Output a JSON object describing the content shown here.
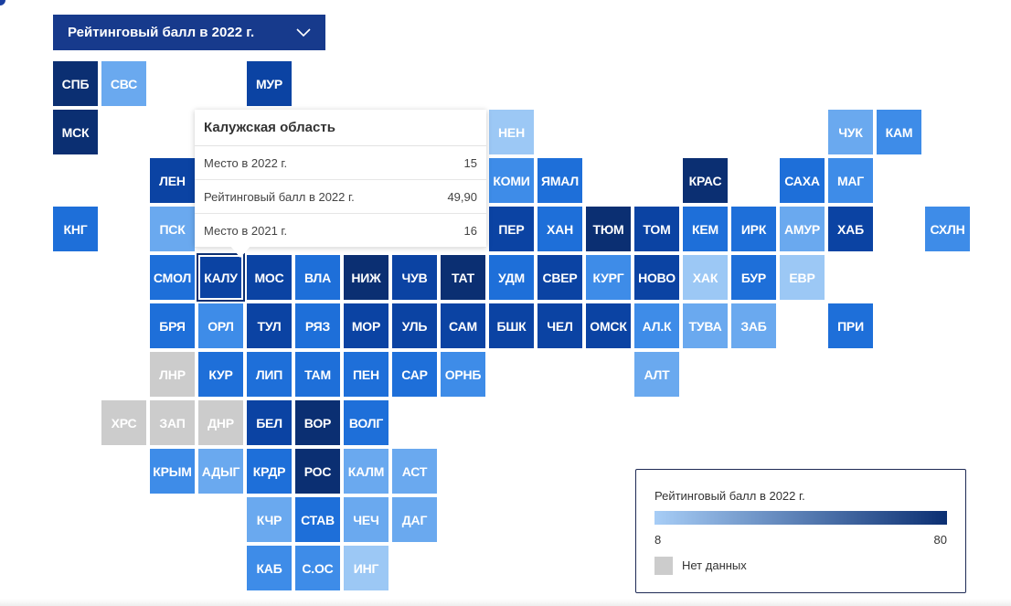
{
  "selector": {
    "label": "Рейтинговый балл в 2022 г."
  },
  "colors": {
    "c1": "#0b2f72",
    "c2": "#0b43a3",
    "c3": "#1e6fd9",
    "c4": "#3e8ce8",
    "c5": "#6aa9ef",
    "c6": "#9cc8f5",
    "nodata": "#cccccc",
    "legend_start": "#a7cdf6",
    "legend_end": "#0b2f72"
  },
  "tooltip": {
    "title": "Калужская область",
    "rows": [
      {
        "label": "Место в 2022 г.",
        "value": "15"
      },
      {
        "label": "Рейтинговый балл в 2022 г.",
        "value": "49,90"
      },
      {
        "label": "Место в 2021 г.",
        "value": "16"
      }
    ]
  },
  "legend": {
    "title": "Рейтинговый балл в 2022 г.",
    "min": "8",
    "max": "80",
    "nodata_label": "Нет данных"
  },
  "regions": [
    {
      "code": "СПБ",
      "col": 0,
      "row": 0,
      "shade": "c1"
    },
    {
      "code": "СВС",
      "col": 1,
      "row": 0,
      "shade": "c5"
    },
    {
      "code": "МУР",
      "col": 4,
      "row": 0,
      "shade": "c2"
    },
    {
      "code": "МСК",
      "col": 0,
      "row": 1,
      "shade": "c1"
    },
    {
      "code": "НЕН",
      "col": 9,
      "row": 1,
      "shade": "c6"
    },
    {
      "code": "ЧУК",
      "col": 16,
      "row": 1,
      "shade": "c5"
    },
    {
      "code": "КАМ",
      "col": 17,
      "row": 1,
      "shade": "c4"
    },
    {
      "code": "ЛЕН",
      "col": 2,
      "row": 2,
      "shade": "c2"
    },
    {
      "code": "КОМИ",
      "col": 9,
      "row": 2,
      "shade": "c4"
    },
    {
      "code": "ЯМАЛ",
      "col": 10,
      "row": 2,
      "shade": "c3"
    },
    {
      "code": "КРАС",
      "col": 13,
      "row": 2,
      "shade": "c1"
    },
    {
      "code": "САХА",
      "col": 15,
      "row": 2,
      "shade": "c3"
    },
    {
      "code": "МАГ",
      "col": 16,
      "row": 2,
      "shade": "c4"
    },
    {
      "code": "КНГ",
      "col": 0,
      "row": 3,
      "shade": "c3"
    },
    {
      "code": "ПСК",
      "col": 2,
      "row": 3,
      "shade": "c5"
    },
    {
      "code": "ПЕР",
      "col": 9,
      "row": 3,
      "shade": "c2"
    },
    {
      "code": "ХАН",
      "col": 10,
      "row": 3,
      "shade": "c3"
    },
    {
      "code": "ТЮМ",
      "col": 11,
      "row": 3,
      "shade": "c1"
    },
    {
      "code": "ТОМ",
      "col": 12,
      "row": 3,
      "shade": "c2"
    },
    {
      "code": "КЕМ",
      "col": 13,
      "row": 3,
      "shade": "c3"
    },
    {
      "code": "ИРК",
      "col": 14,
      "row": 3,
      "shade": "c3"
    },
    {
      "code": "АМУР",
      "col": 15,
      "row": 3,
      "shade": "c5"
    },
    {
      "code": "ХАБ",
      "col": 16,
      "row": 3,
      "shade": "c2"
    },
    {
      "code": "СХЛН",
      "col": 18,
      "row": 3,
      "shade": "c4"
    },
    {
      "code": "СМОЛ",
      "col": 2,
      "row": 4,
      "shade": "c3"
    },
    {
      "code": "КАЛУ",
      "col": 3,
      "row": 4,
      "shade": "c2",
      "selected": true
    },
    {
      "code": "МОС",
      "col": 4,
      "row": 4,
      "shade": "c2"
    },
    {
      "code": "ВЛА",
      "col": 5,
      "row": 4,
      "shade": "c3"
    },
    {
      "code": "НИЖ",
      "col": 6,
      "row": 4,
      "shade": "c1"
    },
    {
      "code": "ЧУВ",
      "col": 7,
      "row": 4,
      "shade": "c2"
    },
    {
      "code": "ТАТ",
      "col": 8,
      "row": 4,
      "shade": "c1"
    },
    {
      "code": "УДМ",
      "col": 9,
      "row": 4,
      "shade": "c3"
    },
    {
      "code": "СВЕР",
      "col": 10,
      "row": 4,
      "shade": "c2"
    },
    {
      "code": "КУРГ",
      "col": 11,
      "row": 4,
      "shade": "c4"
    },
    {
      "code": "НОВО",
      "col": 12,
      "row": 4,
      "shade": "c2"
    },
    {
      "code": "ХАК",
      "col": 13,
      "row": 4,
      "shade": "c6"
    },
    {
      "code": "БУР",
      "col": 14,
      "row": 4,
      "shade": "c3"
    },
    {
      "code": "ЕВР",
      "col": 15,
      "row": 4,
      "shade": "c6"
    },
    {
      "code": "БРЯ",
      "col": 2,
      "row": 5,
      "shade": "c3"
    },
    {
      "code": "ОРЛ",
      "col": 3,
      "row": 5,
      "shade": "c4"
    },
    {
      "code": "ТУЛ",
      "col": 4,
      "row": 5,
      "shade": "c2"
    },
    {
      "code": "РЯЗ",
      "col": 5,
      "row": 5,
      "shade": "c3"
    },
    {
      "code": "МОР",
      "col": 6,
      "row": 5,
      "shade": "c2"
    },
    {
      "code": "УЛЬ",
      "col": 7,
      "row": 5,
      "shade": "c2"
    },
    {
      "code": "САМ",
      "col": 8,
      "row": 5,
      "shade": "c2"
    },
    {
      "code": "БШК",
      "col": 9,
      "row": 5,
      "shade": "c2"
    },
    {
      "code": "ЧЕЛ",
      "col": 10,
      "row": 5,
      "shade": "c2"
    },
    {
      "code": "ОМСК",
      "col": 11,
      "row": 5,
      "shade": "c2"
    },
    {
      "code": "АЛ.К",
      "col": 12,
      "row": 5,
      "shade": "c4"
    },
    {
      "code": "ТУВА",
      "col": 13,
      "row": 5,
      "shade": "c5"
    },
    {
      "code": "ЗАБ",
      "col": 14,
      "row": 5,
      "shade": "c5"
    },
    {
      "code": "ПРИ",
      "col": 16,
      "row": 5,
      "shade": "c3"
    },
    {
      "code": "ЛНР",
      "col": 2,
      "row": 6,
      "shade": "nodata"
    },
    {
      "code": "КУР",
      "col": 3,
      "row": 6,
      "shade": "c3"
    },
    {
      "code": "ЛИП",
      "col": 4,
      "row": 6,
      "shade": "c3"
    },
    {
      "code": "ТАМ",
      "col": 5,
      "row": 6,
      "shade": "c3"
    },
    {
      "code": "ПЕН",
      "col": 6,
      "row": 6,
      "shade": "c3"
    },
    {
      "code": "САР",
      "col": 7,
      "row": 6,
      "shade": "c3"
    },
    {
      "code": "ОРНБ",
      "col": 8,
      "row": 6,
      "shade": "c4"
    },
    {
      "code": "АЛТ",
      "col": 12,
      "row": 6,
      "shade": "c5"
    },
    {
      "code": "ХРС",
      "col": 1,
      "row": 7,
      "shade": "nodata"
    },
    {
      "code": "ЗАП",
      "col": 2,
      "row": 7,
      "shade": "nodata"
    },
    {
      "code": "ДНР",
      "col": 3,
      "row": 7,
      "shade": "nodata"
    },
    {
      "code": "БЕЛ",
      "col": 4,
      "row": 7,
      "shade": "c2"
    },
    {
      "code": "ВОР",
      "col": 5,
      "row": 7,
      "shade": "c1"
    },
    {
      "code": "ВОЛГ",
      "col": 6,
      "row": 7,
      "shade": "c3"
    },
    {
      "code": "КРЫМ",
      "col": 2,
      "row": 8,
      "shade": "c4"
    },
    {
      "code": "АДЫГ",
      "col": 3,
      "row": 8,
      "shade": "c5"
    },
    {
      "code": "КРДР",
      "col": 4,
      "row": 8,
      "shade": "c3"
    },
    {
      "code": "РОС",
      "col": 5,
      "row": 8,
      "shade": "c1"
    },
    {
      "code": "КАЛМ",
      "col": 6,
      "row": 8,
      "shade": "c5"
    },
    {
      "code": "АСТ",
      "col": 7,
      "row": 8,
      "shade": "c5"
    },
    {
      "code": "КЧР",
      "col": 4,
      "row": 9,
      "shade": "c5"
    },
    {
      "code": "СТАВ",
      "col": 5,
      "row": 9,
      "shade": "c3"
    },
    {
      "code": "ЧЕЧ",
      "col": 6,
      "row": 9,
      "shade": "c5"
    },
    {
      "code": "ДАГ",
      "col": 7,
      "row": 9,
      "shade": "c5"
    },
    {
      "code": "КАБ",
      "col": 4,
      "row": 10,
      "shade": "c4"
    },
    {
      "code": "С.ОС",
      "col": 5,
      "row": 10,
      "shade": "c4"
    },
    {
      "code": "ИНГ",
      "col": 6,
      "row": 10,
      "shade": "c6"
    }
  ]
}
